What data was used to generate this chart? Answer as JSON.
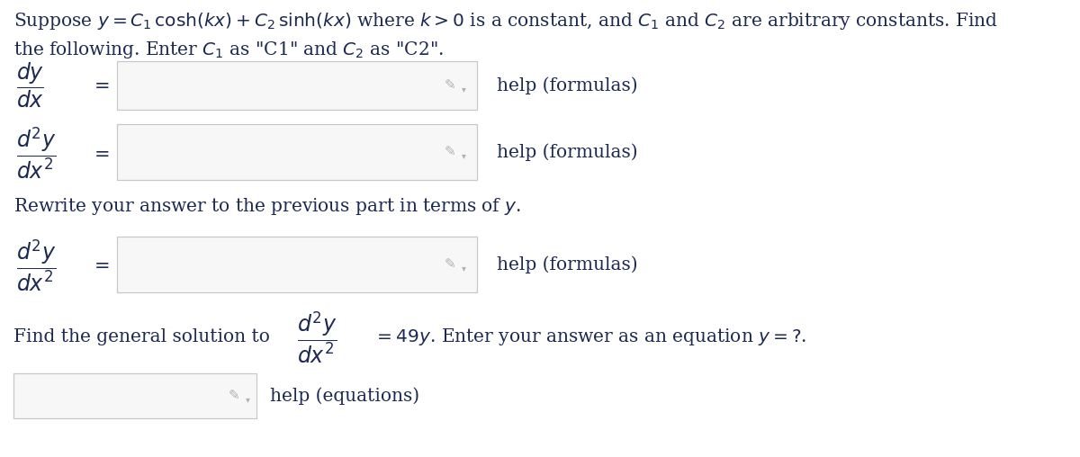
{
  "background_color": "#ffffff",
  "fig_width": 12.0,
  "fig_height": 5.08,
  "dpi": 100,
  "text_color": "#1c2951",
  "box_edge_color": "#c8c8c8",
  "box_face_color": "#f7f7f7",
  "pencil_color": "#b0b0b0",
  "help_color": "#1c2951",
  "title_line1": "Suppose $y = C_1\\,\\mathrm{cosh}(kx) + C_2\\,\\mathrm{sinh}(kx)$ where $k > 0$ is a constant, and $C_1$ and $C_2$ are arbitrary constants. Find",
  "title_line2": "the following. Enter $C_1$ as \"C1\" and $C_2$ as \"C2\".",
  "rewrite_text": "Rewrite your answer to the previous part in terms of $y$.",
  "find_text": "Find the general solution to",
  "find_eq_text": "$= 49y$. Enter your answer as an equation $y =?$.",
  "help_formulas": "help (formulas)",
  "help_equations": "help (equations)",
  "font_size_main": 14.5,
  "font_size_math": 17,
  "font_size_eq": 15,
  "font_size_help": 14.5
}
